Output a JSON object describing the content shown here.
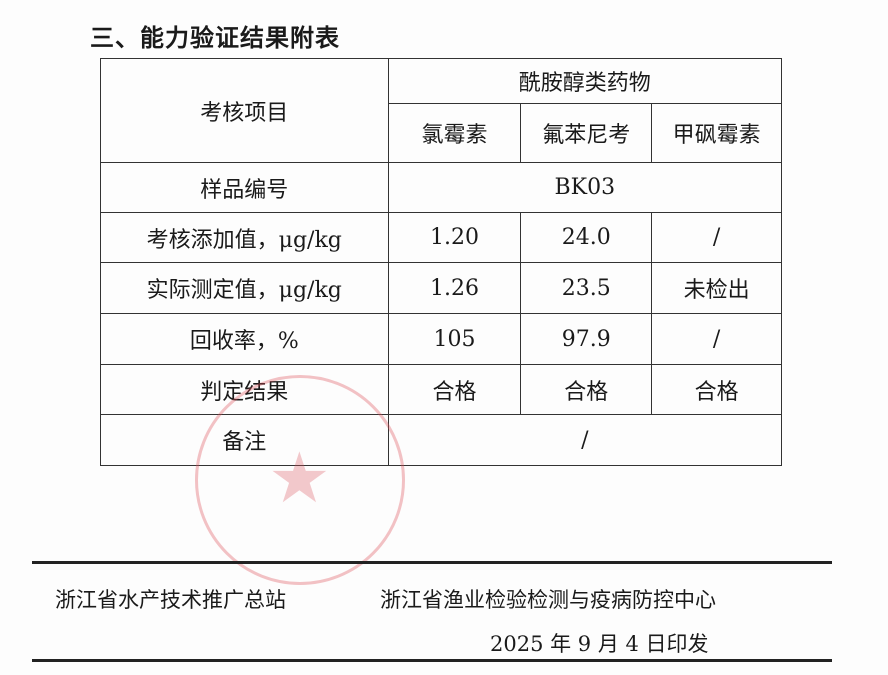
{
  "title": "三、能力验证结果附表",
  "table": {
    "item_header": "考核项目",
    "group_header": "酰胺醇类药物",
    "drugs": [
      "氯霉素",
      "氟苯尼考",
      "甲砜霉素"
    ],
    "sample_label": "样品编号",
    "sample_id": "BK03",
    "rows": [
      {
        "label": "考核添加值，μg/kg",
        "values": [
          "1.20",
          "24.0",
          "/"
        ]
      },
      {
        "label": "实际测定值，μg/kg",
        "values": [
          "1.26",
          "23.5",
          "未检出"
        ]
      },
      {
        "label": "回收率，%",
        "values": [
          "105",
          "97.9",
          "/"
        ]
      },
      {
        "label": "判定结果",
        "values": [
          "合格",
          "合格",
          "合格"
        ]
      }
    ],
    "remark_label": "备注",
    "remark_value": "/"
  },
  "stamp_color": "#dc505a",
  "footer": {
    "org1": "浙江省水产技术推广总站",
    "org2": "浙江省渔业检验检测与疫病防控中心",
    "date": "2025 年 9 月 4 日印发"
  }
}
